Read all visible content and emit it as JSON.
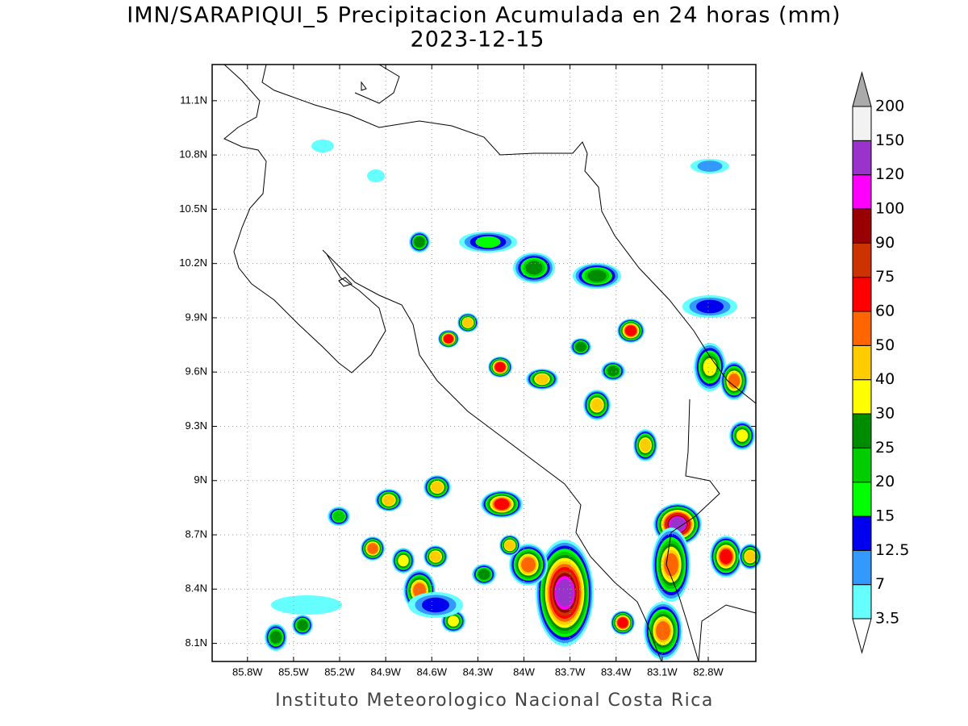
{
  "map": {
    "title": "IMN/SARAPIQUI_5 Precipitacion Acumulada en 24 horas (mm)",
    "subtitle": "2023-12-15",
    "footer": "Instituto Meteorologico Nacional Costa Rica",
    "lon_range": [
      -86.03,
      -82.49
    ],
    "lat_range": [
      8.0,
      11.3
    ],
    "lon_ticks": [
      {
        "value": -85.8,
        "label": "85.8W"
      },
      {
        "value": -85.5,
        "label": "85.5W"
      },
      {
        "value": -85.2,
        "label": "85.2W"
      },
      {
        "value": -84.9,
        "label": "84.9W"
      },
      {
        "value": -84.6,
        "label": "84.6W"
      },
      {
        "value": -84.3,
        "label": "84.3W"
      },
      {
        "value": -84.0,
        "label": "84W"
      },
      {
        "value": -83.7,
        "label": "83.7W"
      },
      {
        "value": -83.4,
        "label": "83.4W"
      },
      {
        "value": -83.1,
        "label": "83.1W"
      },
      {
        "value": -82.8,
        "label": "82.8W"
      }
    ],
    "lat_ticks": [
      {
        "value": 11.1,
        "label": "11.1N"
      },
      {
        "value": 10.8,
        "label": "10.8N"
      },
      {
        "value": 10.5,
        "label": "10.5N"
      },
      {
        "value": 10.2,
        "label": "10.2N"
      },
      {
        "value": 9.9,
        "label": "9.9N"
      },
      {
        "value": 9.6,
        "label": "9.6N"
      },
      {
        "value": 9.3,
        "label": "9.3N"
      },
      {
        "value": 9.0,
        "label": "9N"
      },
      {
        "value": 8.7,
        "label": "8.7N"
      },
      {
        "value": 8.4,
        "label": "8.4N"
      },
      {
        "value": 8.1,
        "label": "8.1N"
      }
    ],
    "grid": true,
    "colorbar": {
      "levels": [
        3.5,
        7,
        12.5,
        15,
        20,
        25,
        30,
        40,
        50,
        60,
        75,
        90,
        100,
        120,
        150,
        200
      ],
      "colors": [
        "#66ffff",
        "#3399ff",
        "#0000ee",
        "#00ff00",
        "#00cc00",
        "#008c00",
        "#ffff00",
        "#ffcc00",
        "#ff6600",
        "#ff0000",
        "#cc3300",
        "#990000",
        "#ff00ff",
        "#9933cc",
        "#f2f2f2"
      ],
      "under_color": "#ffffff",
      "over_color": "#aaaaaa"
    }
  }
}
